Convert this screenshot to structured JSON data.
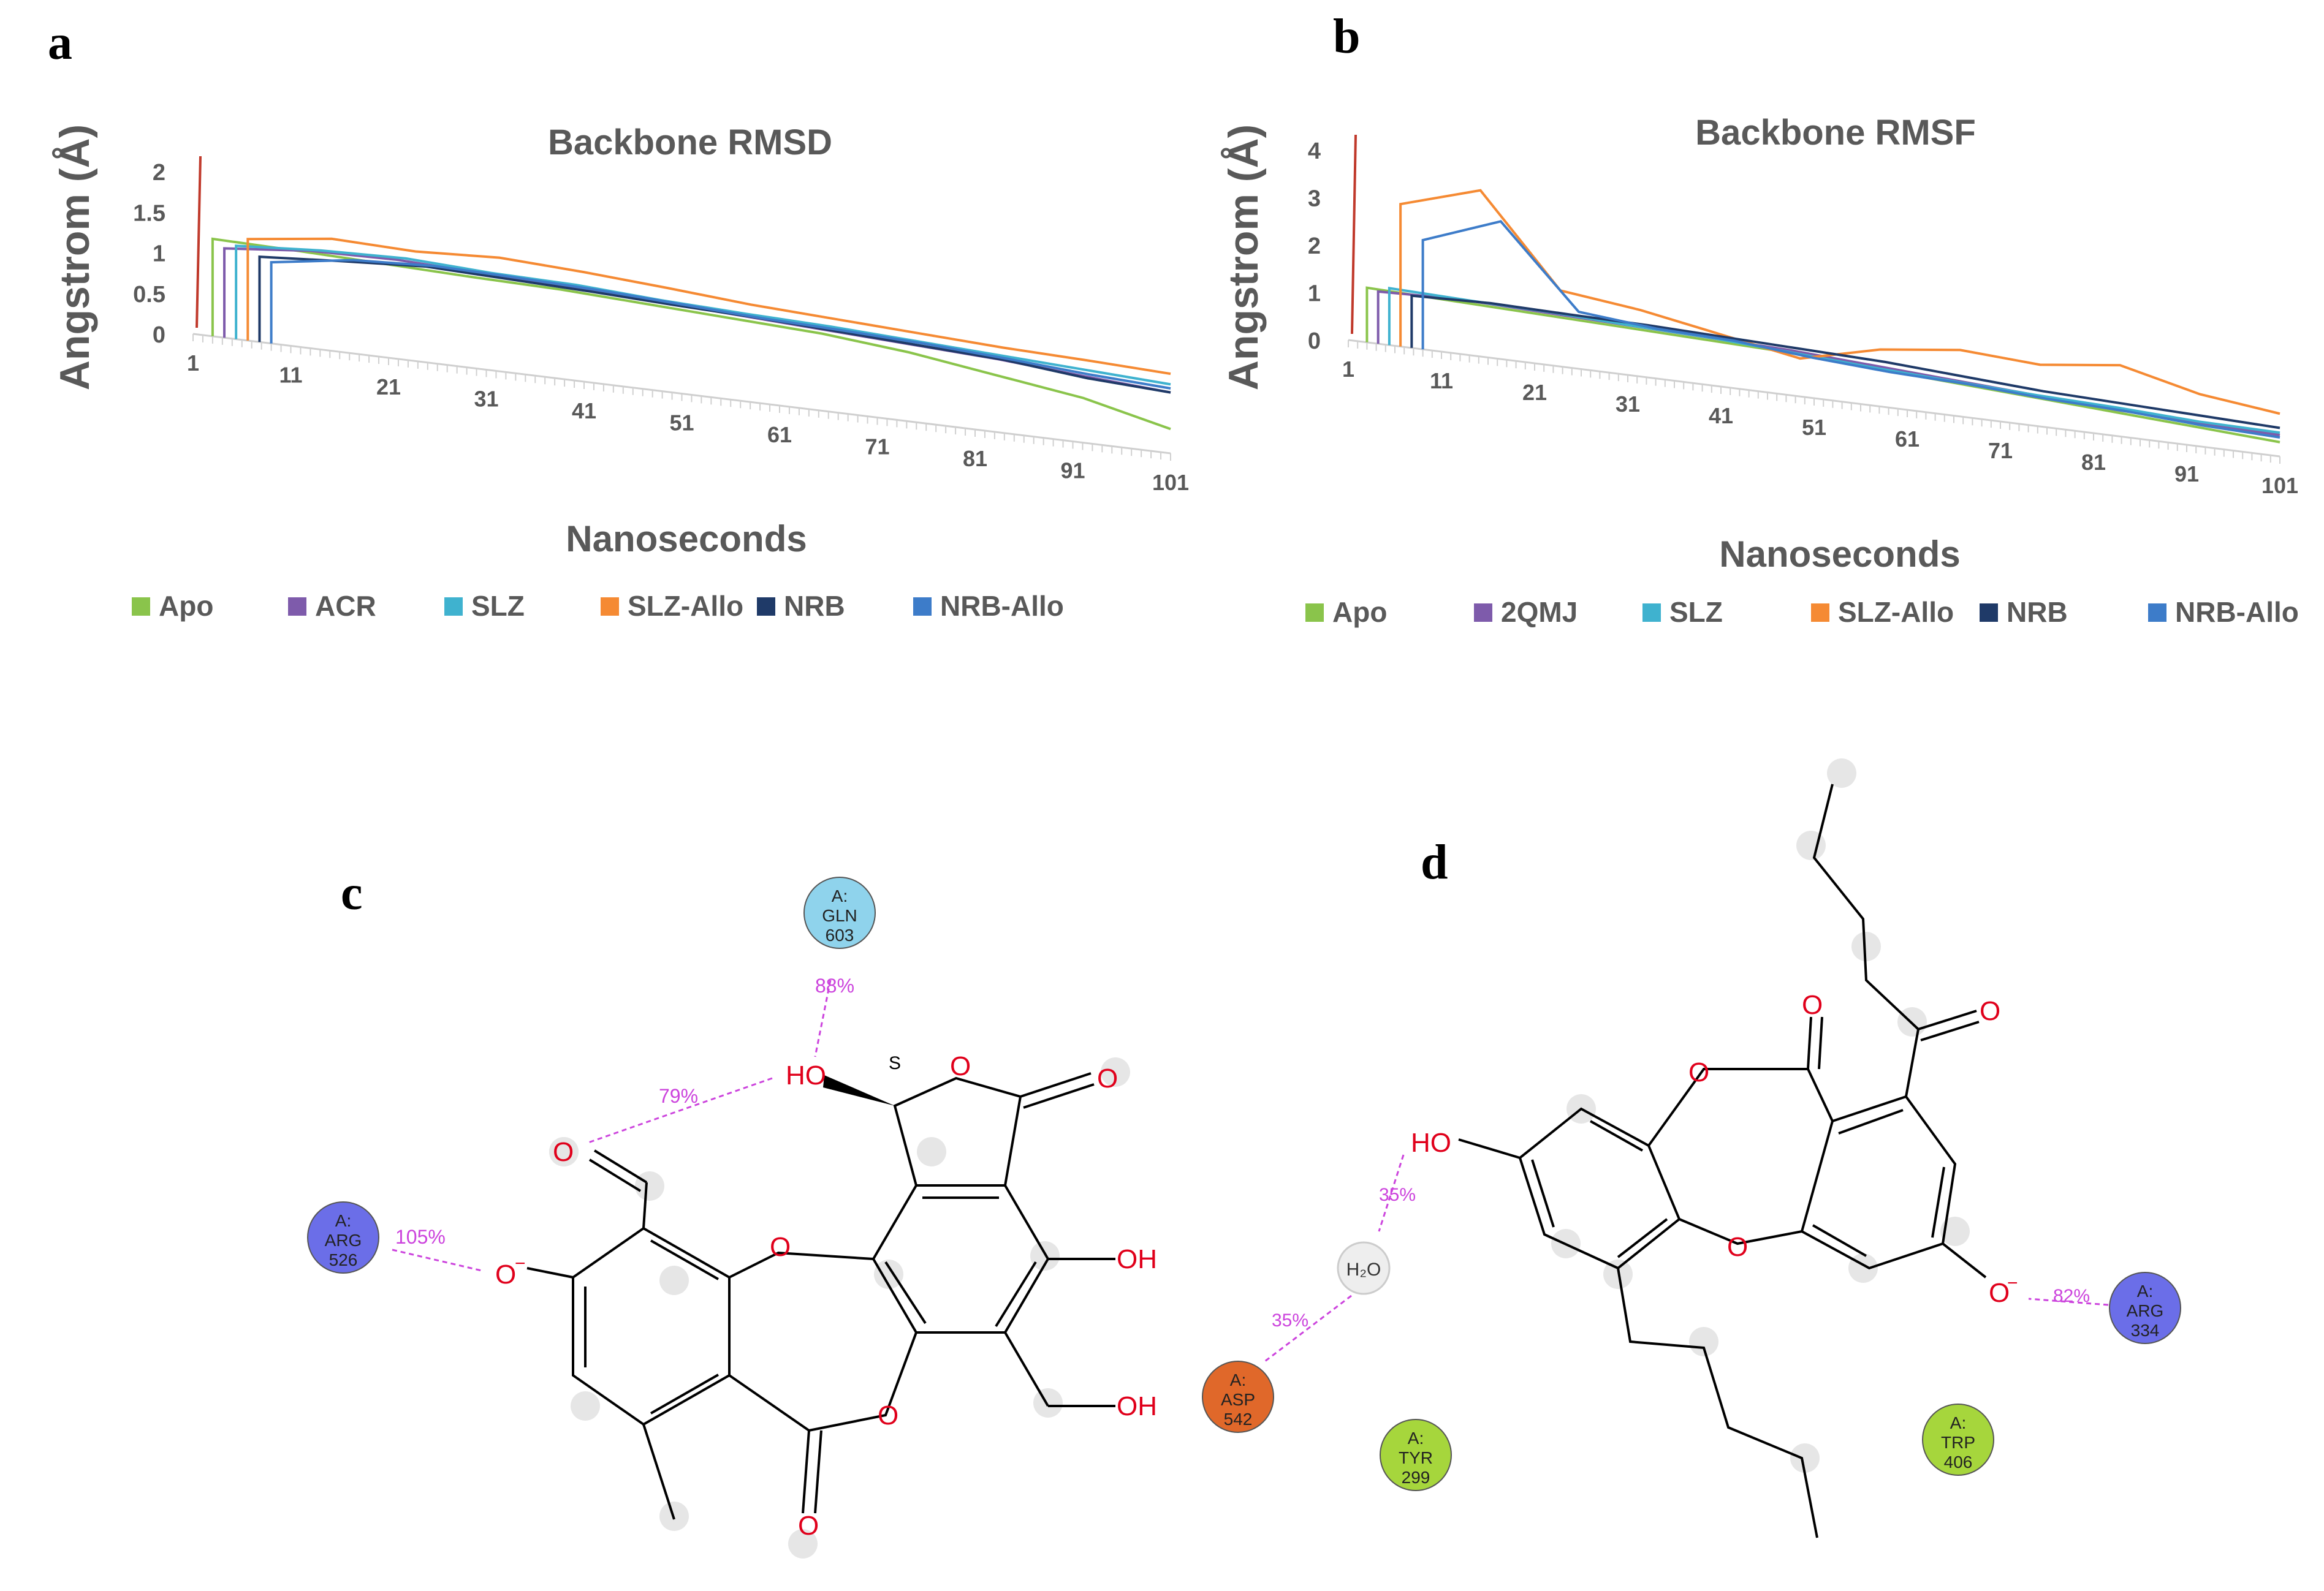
{
  "panels": {
    "a": {
      "letter": "a"
    },
    "b": {
      "letter": "b"
    },
    "c": {
      "letter": "c",
      "residues": [
        {
          "id": "gln",
          "label1": "A:",
          "label2": "GLN",
          "label3": "603",
          "color": "#8fd3ec"
        },
        {
          "id": "arg",
          "label1": "A:",
          "label2": "ARG",
          "label3": "526",
          "color": "#6b6ee8"
        }
      ],
      "interactions": [
        "88%",
        "79%",
        "105%"
      ],
      "atoms": {
        "ho": "HO",
        "o_carbonyl": "O",
        "o_ring1": "O",
        "o_ring2": "O",
        "o_ring3": "O",
        "o_minus": "O",
        "charge": "−",
        "oh1": "OH",
        "oh2": "OH",
        "o_lactone": "O",
        "o_aldehyde": "O",
        "stereo": "S"
      }
    },
    "d": {
      "letter": "d",
      "residues": [
        {
          "id": "asp",
          "label1": "A:",
          "label2": "ASP",
          "label3": "542",
          "color": "#e0682a"
        },
        {
          "id": "tyr",
          "label1": "A:",
          "label2": "TYR",
          "label3": "299",
          "color": "#a6d63c"
        },
        {
          "id": "trp",
          "label1": "A:",
          "label2": "TRP",
          "label3": "406",
          "color": "#a6d63c"
        },
        {
          "id": "arg",
          "label1": "A:",
          "label2": "ARG",
          "label3": "334",
          "color": "#6b6ee8"
        }
      ],
      "water": "H₂O",
      "interactions": [
        "35%",
        "35%",
        "82%"
      ],
      "atoms": {
        "ho": "HO",
        "o_minus": "O",
        "charge": "−",
        "o_ring_top": "O",
        "o_ring_bottom": "O",
        "o_carbonyl": "O",
        "o_ketone": "O"
      }
    }
  },
  "chart_data": [
    {
      "type": "line",
      "title": "Backbone RMSD",
      "xlabel": "Nanoseconds",
      "ylabel": "Angstrom (Å)",
      "y_ticks": [
        "0",
        "0.5",
        "1",
        "1.5",
        "2"
      ],
      "ylim": [
        0,
        2
      ],
      "x_ticks": [
        "1",
        "11",
        "21",
        "31",
        "41",
        "51",
        "61",
        "71",
        "81",
        "91",
        "101"
      ],
      "xlim": [
        1,
        101
      ],
      "legend_position": "bottom",
      "series": [
        {
          "name": "Apo",
          "color": "#8ac44b",
          "values": [
            1.2,
            1.18,
            1.15,
            1.12,
            1.1,
            1.05,
            1.0,
            0.95,
            0.85,
            0.7,
            0.55,
            0.3
          ]
        },
        {
          "name": "ACR",
          "color": "#7e5bab",
          "values": [
            1.1,
            1.2,
            1.22,
            1.18,
            1.15,
            1.1,
            1.05,
            1.0,
            0.95,
            0.9,
            0.82,
            0.75
          ]
        },
        {
          "name": "SLZ",
          "color": "#3fb2cf",
          "values": [
            1.15,
            1.22,
            1.25,
            1.2,
            1.18,
            1.12,
            1.08,
            1.05,
            1.0,
            0.95,
            0.9,
            0.85
          ]
        },
        {
          "name": "SLZ-Allo",
          "color": "#f58a33",
          "values": [
            1.25,
            1.38,
            1.35,
            1.4,
            1.35,
            1.28,
            1.2,
            1.15,
            1.1,
            1.05,
            1.02,
            0.98
          ]
        },
        {
          "name": "NRB",
          "color": "#1f3a68",
          "values": [
            1.05,
            1.12,
            1.18,
            1.15,
            1.12,
            1.08,
            1.05,
            1.0,
            0.95,
            0.9,
            0.8,
            0.75
          ]
        },
        {
          "name": "NRB-Allo",
          "color": "#3d7cc9",
          "values": [
            1.0,
            1.15,
            1.2,
            1.18,
            1.15,
            1.1,
            1.05,
            1.02,
            0.98,
            0.92,
            0.85,
            0.8
          ]
        }
      ]
    },
    {
      "type": "line",
      "title": "Backbone RMSF",
      "xlabel": "Nanoseconds",
      "ylabel": "Angstrom (Å)",
      "y_ticks": [
        "0",
        "1",
        "2",
        "3",
        "4"
      ],
      "ylim": [
        0,
        4
      ],
      "x_ticks": [
        "1",
        "11",
        "21",
        "31",
        "41",
        "51",
        "61",
        "71",
        "81",
        "91",
        "101"
      ],
      "xlim": [
        1,
        101
      ],
      "legend_position": "bottom",
      "series": [
        {
          "name": "Apo",
          "color": "#8ac44b",
          "values": [
            1.15,
            1.1,
            1.05,
            1.0,
            0.95,
            0.9,
            0.8,
            0.7,
            0.6,
            0.5,
            0.4,
            0.3
          ]
        },
        {
          "name": "2QMJ",
          "color": "#7e5bab",
          "values": [
            1.1,
            1.15,
            1.1,
            1.05,
            1.0,
            0.95,
            0.85,
            0.75,
            0.65,
            0.55,
            0.5,
            0.45
          ]
        },
        {
          "name": "SLZ",
          "color": "#3fb2cf",
          "values": [
            1.2,
            1.15,
            1.12,
            1.05,
            1.0,
            0.9,
            0.8,
            0.72,
            0.65,
            0.6,
            0.52,
            0.5
          ]
        },
        {
          "name": "SLZ-Allo",
          "color": "#f58a33",
          "values": [
            3.0,
            3.5,
            1.6,
            1.4,
            1.1,
            0.8,
            1.2,
            1.4,
            1.3,
            1.5,
            1.1,
            0.9
          ]
        },
        {
          "name": "NRB",
          "color": "#1f3a68",
          "values": [
            1.1,
            1.15,
            1.12,
            1.1,
            1.05,
            1.0,
            0.95,
            0.85,
            0.75,
            0.7,
            0.65,
            0.6
          ]
        },
        {
          "name": "NRB-Allo",
          "color": "#3d7cc9",
          "values": [
            2.3,
            2.9,
            1.2,
            1.05,
            1.0,
            0.85,
            0.75,
            0.7,
            0.6,
            0.55,
            0.45,
            0.4
          ]
        }
      ]
    }
  ]
}
